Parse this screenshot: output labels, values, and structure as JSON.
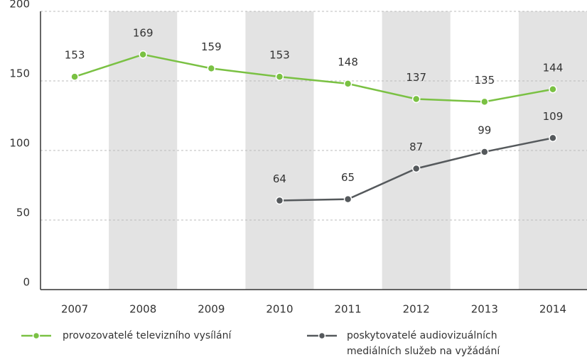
{
  "chart_data": {
    "type": "line",
    "categories": [
      "2007",
      "2008",
      "2009",
      "2010",
      "2011",
      "2012",
      "2013",
      "2014"
    ],
    "series": [
      {
        "name": "provozovatelé televizního vysílání",
        "color": "#7ac143",
        "values": [
          153,
          169,
          159,
          153,
          148,
          137,
          135,
          144
        ]
      },
      {
        "name": "poskytovatelé audiovizuálních mediálních služeb na vyžádání",
        "color": "#55595c",
        "values": [
          null,
          null,
          null,
          64,
          65,
          87,
          99,
          109
        ]
      }
    ],
    "ylim": [
      0,
      200
    ],
    "yticks": [
      0,
      50,
      100,
      150,
      200
    ],
    "grid": true,
    "band_color": "#e3e3e3"
  }
}
